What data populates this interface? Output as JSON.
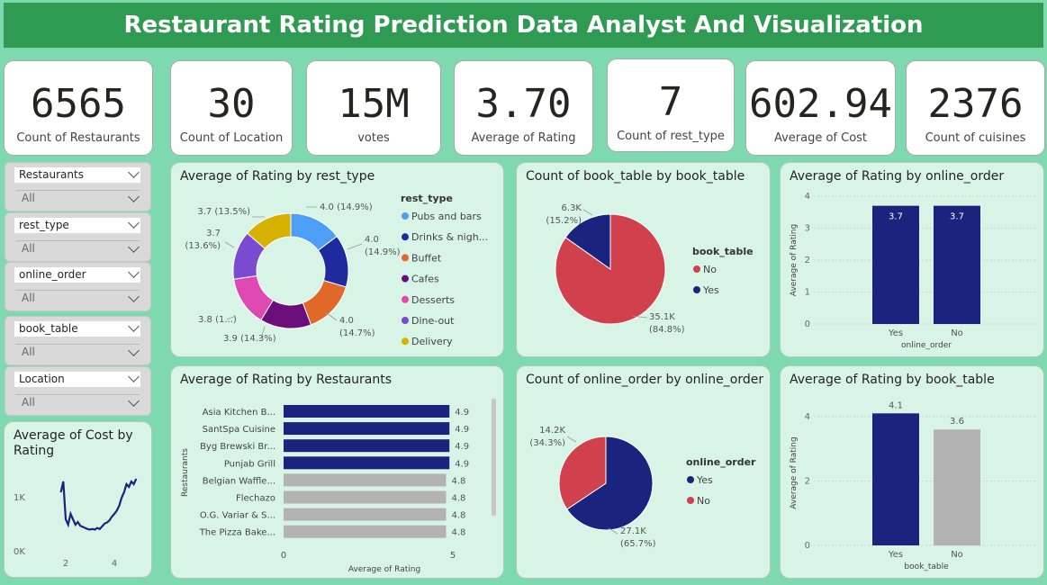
{
  "header": {
    "title": "Restaurant Rating Prediction Data Analyst And Visualization"
  },
  "kpis": [
    {
      "value": "6565",
      "label": "Count of Restaurants"
    },
    {
      "value": "30",
      "label": "Count of Location"
    },
    {
      "value": "15M",
      "label": "votes"
    },
    {
      "value": "3.70",
      "label": "Average of Rating"
    },
    {
      "value": "7",
      "label": "Count of rest_type"
    },
    {
      "value": "602.94",
      "label": "Average of Cost"
    },
    {
      "value": "2376",
      "label": "Count of cuisines"
    }
  ],
  "slicers": [
    {
      "label": "Restaurants",
      "value": "All"
    },
    {
      "label": "rest_type",
      "value": "All"
    },
    {
      "label": "online_order",
      "value": "All"
    },
    {
      "label": "book_table",
      "value": "All"
    },
    {
      "label": "Location",
      "value": "All"
    }
  ],
  "colors": {
    "accent_green": "#2f9a52",
    "navy": "#1a237e",
    "red": "#d1404d",
    "gray": "#b3b3b3"
  },
  "charts": {
    "rest_type": {
      "title": "Average of Rating by rest_type",
      "legend_title": "rest_type",
      "legend": [
        "Pubs and bars",
        "Drinks & nigh...",
        "Buffet",
        "Cafes",
        "Desserts",
        "Dine-out",
        "Delivery"
      ],
      "labels": [
        "4.0 (14.9%)",
        "4.0",
        "(14.9%)",
        "4.0",
        "(14.7%)",
        "3.9 (14.3%)",
        "3.8 (1...)",
        "3.7",
        "(13.6%)",
        "3.7 (13.5%)"
      ]
    },
    "book_count": {
      "title": "Count of book_table by book_table",
      "legend_title": "book_table",
      "legend": [
        "No",
        "Yes"
      ],
      "labels": [
        "6.3K",
        "(15.2%)",
        "35.1K",
        "(84.8%)"
      ]
    },
    "online_rating": {
      "title": "Average of Rating by online_order",
      "xlabel": "online_order",
      "ylabel": "Average of Rating"
    },
    "cost_rating": {
      "title": "Average of Cost by Rating"
    },
    "restaurants": {
      "title": "Average of Rating by Restaurants",
      "ylabel": "Restaurants",
      "xlabel": "Average of Rating"
    },
    "online_count": {
      "title": "Count of online_order by online_order",
      "legend_title": "online_order",
      "legend": [
        "Yes",
        "No"
      ],
      "labels": [
        "14.2K",
        "(34.3%)",
        "27.1K",
        "(65.7%)"
      ]
    },
    "book_rating": {
      "title": "Average of Rating by book_table",
      "xlabel": "book_table",
      "ylabel": "Average of Rating"
    }
  },
  "chart_data": [
    {
      "type": "pie",
      "title": "Average of Rating by rest_type",
      "categories": [
        "Pubs and bars",
        "Drinks & nightlife",
        "Buffet",
        "Cafes",
        "Desserts",
        "Dine-out",
        "Delivery"
      ],
      "values": [
        4.0,
        4.0,
        4.0,
        3.9,
        3.8,
        3.7,
        3.7
      ],
      "percent": [
        14.9,
        14.9,
        14.7,
        14.3,
        14.1,
        13.6,
        13.5
      ],
      "colors": [
        "#4c9ff5",
        "#1f2a9c",
        "#e0692a",
        "#6b0d7a",
        "#dd49b0",
        "#7a4bd1",
        "#d6b100"
      ]
    },
    {
      "type": "pie",
      "title": "Count of book_table by book_table",
      "categories": [
        "No",
        "Yes"
      ],
      "values": [
        35100,
        6300
      ],
      "percent": [
        84.8,
        15.2
      ],
      "colors": [
        "#d1404d",
        "#1a237e"
      ]
    },
    {
      "type": "bar",
      "title": "Average of Rating by online_order",
      "categories": [
        "Yes",
        "No"
      ],
      "values": [
        3.7,
        3.7
      ],
      "ylim": [
        0,
        4
      ],
      "yticks": [
        0,
        1,
        2,
        3,
        4
      ]
    },
    {
      "type": "line",
      "title": "Average of Cost by Rating",
      "xticks": [
        2,
        4
      ],
      "yticks": [
        "0K",
        "1K"
      ],
      "x": [
        1.8,
        1.9,
        2.0,
        2.1,
        2.2,
        2.3,
        2.4,
        2.5,
        2.6,
        2.7,
        2.8,
        2.9,
        3.0,
        3.1,
        3.2,
        3.3,
        3.4,
        3.5,
        3.6,
        3.7,
        3.8,
        3.9,
        4.0,
        4.1,
        4.2,
        4.3,
        4.4,
        4.5,
        4.6,
        4.7,
        4.8,
        4.9
      ],
      "y": [
        1100,
        1300,
        600,
        500,
        700,
        600,
        500,
        550,
        480,
        460,
        440,
        420,
        410,
        420,
        410,
        440,
        420,
        470,
        520,
        540,
        580,
        650,
        700,
        760,
        850,
        1000,
        1100,
        1250,
        1200,
        1300,
        1250,
        1350
      ]
    },
    {
      "type": "bar",
      "title": "Average of Rating by Restaurants",
      "orientation": "horizontal",
      "categories": [
        "Asia Kitchen B...",
        "SantSpa Cuisine",
        "Byg Brewski Br...",
        "Punjab Grill",
        "Belgian Waffle...",
        "Flechazo",
        "O.G. Variar & S...",
        "The Pizza Bake..."
      ],
      "values": [
        4.9,
        4.9,
        4.9,
        4.9,
        4.8,
        4.8,
        4.8,
        4.8
      ],
      "xticks": [
        0,
        5
      ]
    },
    {
      "type": "pie",
      "title": "Count of online_order by online_order",
      "categories": [
        "Yes",
        "No"
      ],
      "values": [
        27100,
        14200
      ],
      "percent": [
        65.7,
        34.3
      ],
      "colors": [
        "#1a237e",
        "#d1404d"
      ]
    },
    {
      "type": "bar",
      "title": "Average of Rating by book_table",
      "categories": [
        "Yes",
        "No"
      ],
      "values": [
        4.1,
        3.6
      ],
      "ylim": [
        0,
        4.5
      ],
      "yticks": [
        0,
        2,
        4
      ]
    }
  ]
}
